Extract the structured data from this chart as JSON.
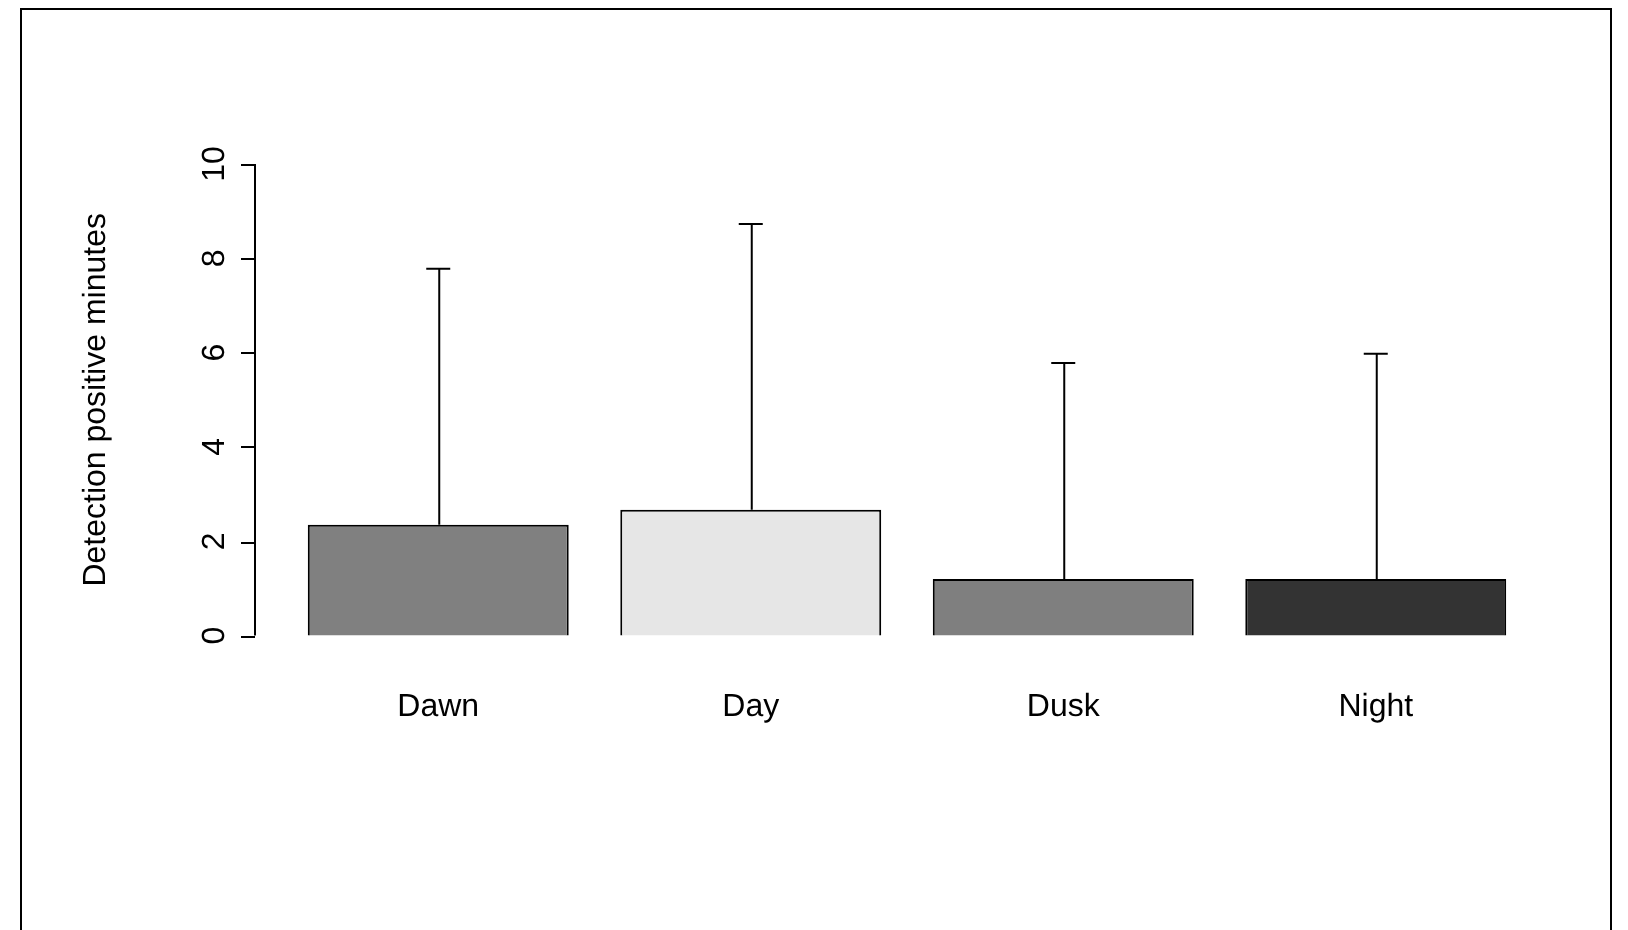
{
  "chart_data": {
    "type": "bar",
    "ylabel": "Detection positive minutes",
    "categories": [
      "Dawn",
      "Day",
      "Dusk",
      "Night"
    ],
    "values": [
      2.35,
      2.67,
      1.2,
      1.2
    ],
    "colors": [
      "#808080",
      "#e6e6e6",
      "#7f7f7f",
      "#333333"
    ],
    "errors": [
      [
        2.35,
        7.8
      ],
      [
        2.67,
        8.75
      ],
      [
        1.2,
        5.8
      ],
      [
        1.2,
        6.0
      ]
    ],
    "ylim": [
      0,
      10
    ],
    "yticks": [
      0,
      2,
      4,
      6,
      8,
      10
    ],
    "grid": false,
    "legend": false
  }
}
